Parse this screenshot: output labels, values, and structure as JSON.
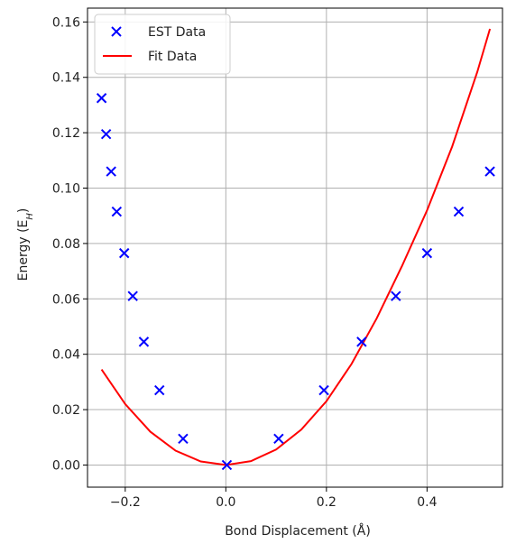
{
  "chart_data": {
    "type": "scatter",
    "xlabel": "Bond Displacement (Å)",
    "ylabel": {
      "main": "Energy (E",
      "sub": "H",
      "close": ")"
    },
    "xlim": [
      -0.275,
      0.55
    ],
    "ylim": [
      -0.008,
      0.165
    ],
    "grid": true,
    "legend_position": "top-left",
    "x_ticks": [
      -0.2,
      0.0,
      0.2,
      0.4
    ],
    "x_tick_labels": [
      "−0.2",
      "0.0",
      "0.2",
      "0.4"
    ],
    "y_ticks": [
      0.0,
      0.02,
      0.04,
      0.06,
      0.08,
      0.1,
      0.12,
      0.14,
      0.16
    ],
    "y_tick_labels": [
      "0.00",
      "0.02",
      "0.04",
      "0.06",
      "0.08",
      "0.10",
      "0.12",
      "0.14",
      "0.16"
    ],
    "series": [
      {
        "name": "EST Data",
        "kind": "scatter",
        "marker": "x",
        "color": "#0000ff",
        "points": [
          {
            "x": -0.247,
            "y": 0.1325
          },
          {
            "x": -0.238,
            "y": 0.1195
          },
          {
            "x": -0.228,
            "y": 0.106
          },
          {
            "x": -0.217,
            "y": 0.0915
          },
          {
            "x": -0.202,
            "y": 0.0765
          },
          {
            "x": -0.185,
            "y": 0.061
          },
          {
            "x": -0.163,
            "y": 0.0445
          },
          {
            "x": -0.132,
            "y": 0.027
          },
          {
            "x": -0.085,
            "y": 0.0095
          },
          {
            "x": 0.002,
            "y": 0.0
          },
          {
            "x": 0.105,
            "y": 0.0095
          },
          {
            "x": 0.195,
            "y": 0.027
          },
          {
            "x": 0.27,
            "y": 0.0445
          },
          {
            "x": 0.338,
            "y": 0.061
          },
          {
            "x": 0.4,
            "y": 0.0765
          },
          {
            "x": 0.463,
            "y": 0.0915
          },
          {
            "x": 0.525,
            "y": 0.106
          }
        ]
      },
      {
        "name": "Fit Data",
        "kind": "line",
        "color": "#ff0000",
        "points": [
          {
            "x": -0.247,
            "y": 0.0345
          },
          {
            "x": -0.2,
            "y": 0.022
          },
          {
            "x": -0.15,
            "y": 0.012
          },
          {
            "x": -0.1,
            "y": 0.0052
          },
          {
            "x": -0.05,
            "y": 0.0013
          },
          {
            "x": 0.0,
            "y": 0.0
          },
          {
            "x": 0.05,
            "y": 0.0014
          },
          {
            "x": 0.1,
            "y": 0.0056
          },
          {
            "x": 0.15,
            "y": 0.0128
          },
          {
            "x": 0.2,
            "y": 0.023
          },
          {
            "x": 0.25,
            "y": 0.0365
          },
          {
            "x": 0.3,
            "y": 0.053
          },
          {
            "x": 0.35,
            "y": 0.0718
          },
          {
            "x": 0.4,
            "y": 0.092
          },
          {
            "x": 0.45,
            "y": 0.115
          },
          {
            "x": 0.5,
            "y": 0.142
          },
          {
            "x": 0.525,
            "y": 0.1575
          }
        ]
      }
    ]
  }
}
